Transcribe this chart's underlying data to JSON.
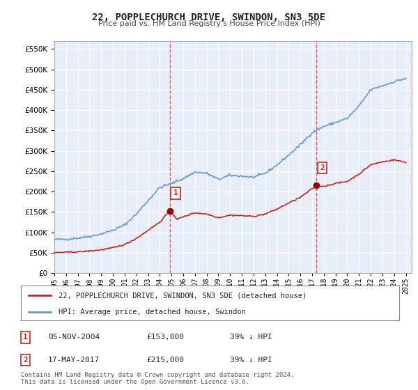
{
  "title": "22, POPPLECHURCH DRIVE, SWINDON, SN3 5DE",
  "subtitle": "Price paid vs. HM Land Registry's House Price Index (HPI)",
  "hpi_color": "#6699cc",
  "price_color": "#cc2222",
  "marker_color": "#990000",
  "background_color": "#ffffff",
  "plot_bg_color": "#e8eef8",
  "grid_color": "#ffffff",
  "ylim": [
    0,
    570000
  ],
  "yticks": [
    0,
    50000,
    100000,
    150000,
    200000,
    250000,
    300000,
    350000,
    400000,
    450000,
    500000,
    550000
  ],
  "xlim_start": 1995.0,
  "xlim_end": 2025.5,
  "purchase1_x": 2004.847,
  "purchase1_y": 153000,
  "purchase1_label": "1",
  "purchase2_x": 2017.373,
  "purchase2_y": 215000,
  "purchase2_label": "2",
  "legend_line1": "22, POPPLECHURCH DRIVE, SWINDON, SN3 5DE (detached house)",
  "legend_line2": "HPI: Average price, detached house, Swindon",
  "table_row1": [
    "1",
    "05-NOV-2004",
    "£153,000",
    "39% ↓ HPI"
  ],
  "table_row2": [
    "2",
    "17-MAY-2017",
    "£215,000",
    "39% ↓ HPI"
  ],
  "footnote": "Contains HM Land Registry data © Crown copyright and database right 2024.\nThis data is licensed under the Open Government Licence v3.0.",
  "xtick_years": [
    1995,
    1996,
    1997,
    1998,
    1999,
    2000,
    2001,
    2002,
    2003,
    2004,
    2005,
    2006,
    2007,
    2008,
    2009,
    2010,
    2011,
    2012,
    2013,
    2014,
    2015,
    2016,
    2017,
    2018,
    2019,
    2020,
    2021,
    2022,
    2023,
    2024,
    2025
  ]
}
